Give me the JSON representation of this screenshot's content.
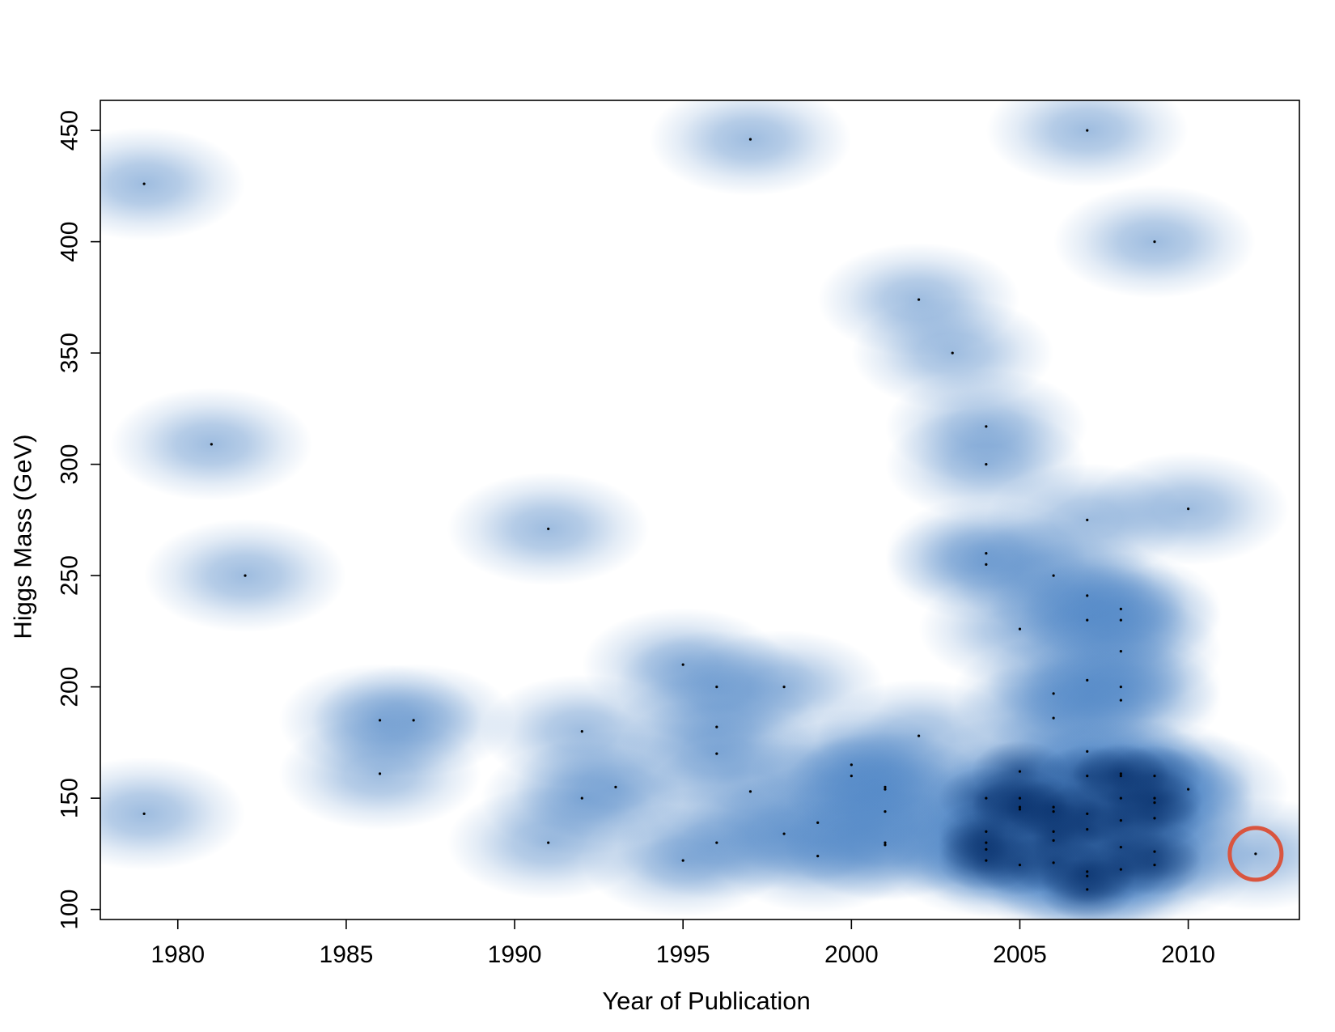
{
  "chart_data": {
    "type": "scatter",
    "style": "smoothed density scatter",
    "title": "",
    "xlabel": "Year of Publication",
    "ylabel": "Higgs Mass (GeV)",
    "xlim": [
      1977.7,
      1983.0
    ],
    "xlim_note": "",
    "x_range": [
      1977.7,
      2013.3
    ],
    "ylim": [
      95.5,
      463.5
    ],
    "xticks": [
      1980,
      1985,
      1990,
      1995,
      2000,
      2005,
      2010
    ],
    "yticks": [
      100,
      150,
      200,
      250,
      300,
      350,
      400,
      450
    ],
    "grid": false,
    "legend": "none",
    "colors": {
      "density_base": "#dbe6f5",
      "density_mid": "#6b9bd1",
      "density_dark": "#08306b",
      "points": "#000000",
      "highlight": "#d9553f"
    },
    "highlight": {
      "x": 2012,
      "y": 125,
      "marker": "circle"
    },
    "points": [
      {
        "x": 1979,
        "y": 426
      },
      {
        "x": 1979,
        "y": 143
      },
      {
        "x": 1981,
        "y": 309
      },
      {
        "x": 1982,
        "y": 250
      },
      {
        "x": 1986,
        "y": 185
      },
      {
        "x": 1987,
        "y": 185
      },
      {
        "x": 1986,
        "y": 161
      },
      {
        "x": 1991,
        "y": 271
      },
      {
        "x": 1991,
        "y": 130
      },
      {
        "x": 1992,
        "y": 180
      },
      {
        "x": 1992,
        "y": 150
      },
      {
        "x": 1993,
        "y": 155
      },
      {
        "x": 1995,
        "y": 210
      },
      {
        "x": 1995,
        "y": 122
      },
      {
        "x": 1996,
        "y": 200
      },
      {
        "x": 1996,
        "y": 182
      },
      {
        "x": 1996,
        "y": 170
      },
      {
        "x": 1996,
        "y": 130
      },
      {
        "x": 1997,
        "y": 446
      },
      {
        "x": 1997,
        "y": 153
      },
      {
        "x": 1998,
        "y": 200
      },
      {
        "x": 1998,
        "y": 134
      },
      {
        "x": 1999,
        "y": 139
      },
      {
        "x": 1999,
        "y": 124
      },
      {
        "x": 2000,
        "y": 165
      },
      {
        "x": 2000,
        "y": 160
      },
      {
        "x": 2001,
        "y": 155
      },
      {
        "x": 2001,
        "y": 154
      },
      {
        "x": 2001,
        "y": 144
      },
      {
        "x": 2001,
        "y": 130
      },
      {
        "x": 2001,
        "y": 129
      },
      {
        "x": 2002,
        "y": 374
      },
      {
        "x": 2002,
        "y": 178
      },
      {
        "x": 2003,
        "y": 350
      },
      {
        "x": 2004,
        "y": 317
      },
      {
        "x": 2004,
        "y": 300
      },
      {
        "x": 2004,
        "y": 260
      },
      {
        "x": 2004,
        "y": 255
      },
      {
        "x": 2004,
        "y": 150
      },
      {
        "x": 2004,
        "y": 135
      },
      {
        "x": 2004,
        "y": 130
      },
      {
        "x": 2004,
        "y": 127
      },
      {
        "x": 2004,
        "y": 122
      },
      {
        "x": 2005,
        "y": 226
      },
      {
        "x": 2005,
        "y": 162
      },
      {
        "x": 2005,
        "y": 150
      },
      {
        "x": 2005,
        "y": 146
      },
      {
        "x": 2005,
        "y": 145
      },
      {
        "x": 2005,
        "y": 120
      },
      {
        "x": 2006,
        "y": 250
      },
      {
        "x": 2006,
        "y": 197
      },
      {
        "x": 2006,
        "y": 186
      },
      {
        "x": 2006,
        "y": 146
      },
      {
        "x": 2006,
        "y": 144
      },
      {
        "x": 2006,
        "y": 135
      },
      {
        "x": 2006,
        "y": 131
      },
      {
        "x": 2006,
        "y": 121
      },
      {
        "x": 2007,
        "y": 450
      },
      {
        "x": 2007,
        "y": 275
      },
      {
        "x": 2007,
        "y": 241
      },
      {
        "x": 2007,
        "y": 230
      },
      {
        "x": 2007,
        "y": 203
      },
      {
        "x": 2007,
        "y": 171
      },
      {
        "x": 2007,
        "y": 160
      },
      {
        "x": 2007,
        "y": 143
      },
      {
        "x": 2007,
        "y": 136
      },
      {
        "x": 2007,
        "y": 117
      },
      {
        "x": 2007,
        "y": 115
      },
      {
        "x": 2007,
        "y": 109
      },
      {
        "x": 2008,
        "y": 235
      },
      {
        "x": 2008,
        "y": 230
      },
      {
        "x": 2008,
        "y": 216
      },
      {
        "x": 2008,
        "y": 200
      },
      {
        "x": 2008,
        "y": 194
      },
      {
        "x": 2008,
        "y": 161
      },
      {
        "x": 2008,
        "y": 160
      },
      {
        "x": 2008,
        "y": 150
      },
      {
        "x": 2008,
        "y": 140
      },
      {
        "x": 2008,
        "y": 128
      },
      {
        "x": 2008,
        "y": 118
      },
      {
        "x": 2009,
        "y": 400
      },
      {
        "x": 2009,
        "y": 160
      },
      {
        "x": 2009,
        "y": 150
      },
      {
        "x": 2009,
        "y": 148
      },
      {
        "x": 2009,
        "y": 141
      },
      {
        "x": 2009,
        "y": 126
      },
      {
        "x": 2009,
        "y": 120
      },
      {
        "x": 2010,
        "y": 280
      },
      {
        "x": 2010,
        "y": 154
      },
      {
        "x": 2012,
        "y": 125
      }
    ]
  }
}
